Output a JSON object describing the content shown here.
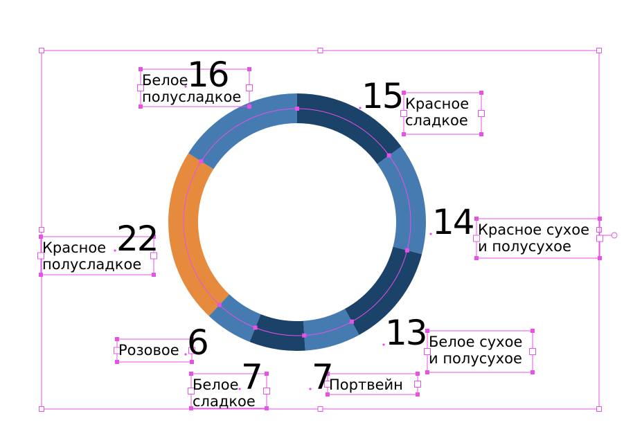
{
  "chart_data": {
    "type": "pie",
    "style": "donut",
    "title": "",
    "start_angle_deg": 0,
    "direction": "clockwise",
    "slices": [
      {
        "label_lines": [
          "Красное",
          "сладкое"
        ],
        "value": 15,
        "color": "#1b4268"
      },
      {
        "label_lines": [
          "Красное сухое",
          "и полусухое"
        ],
        "value": 14,
        "color": "#457bb1"
      },
      {
        "label_lines": [
          "Белое сухое",
          "и полусухое"
        ],
        "value": 13,
        "color": "#1b4268"
      },
      {
        "label_lines": [
          "Портвейн"
        ],
        "value": 7,
        "color": "#457bb1"
      },
      {
        "label_lines": [
          "Белое",
          "сладкое"
        ],
        "value": 7,
        "color": "#1b4268"
      },
      {
        "label_lines": [
          "Розовое"
        ],
        "value": 6,
        "color": "#457bb1"
      },
      {
        "label_lines": [
          "Красное",
          "полусладкое"
        ],
        "value": 22,
        "color": "#e68a3e"
      },
      {
        "label_lines": [
          "Белое",
          "полусладкое"
        ],
        "value": 16,
        "color": "#457bb1"
      }
    ]
  },
  "colors": {
    "selection": "#e651e6",
    "dark_blue": "#1b4268",
    "mid_blue": "#457bb1",
    "orange": "#e68a3e"
  }
}
